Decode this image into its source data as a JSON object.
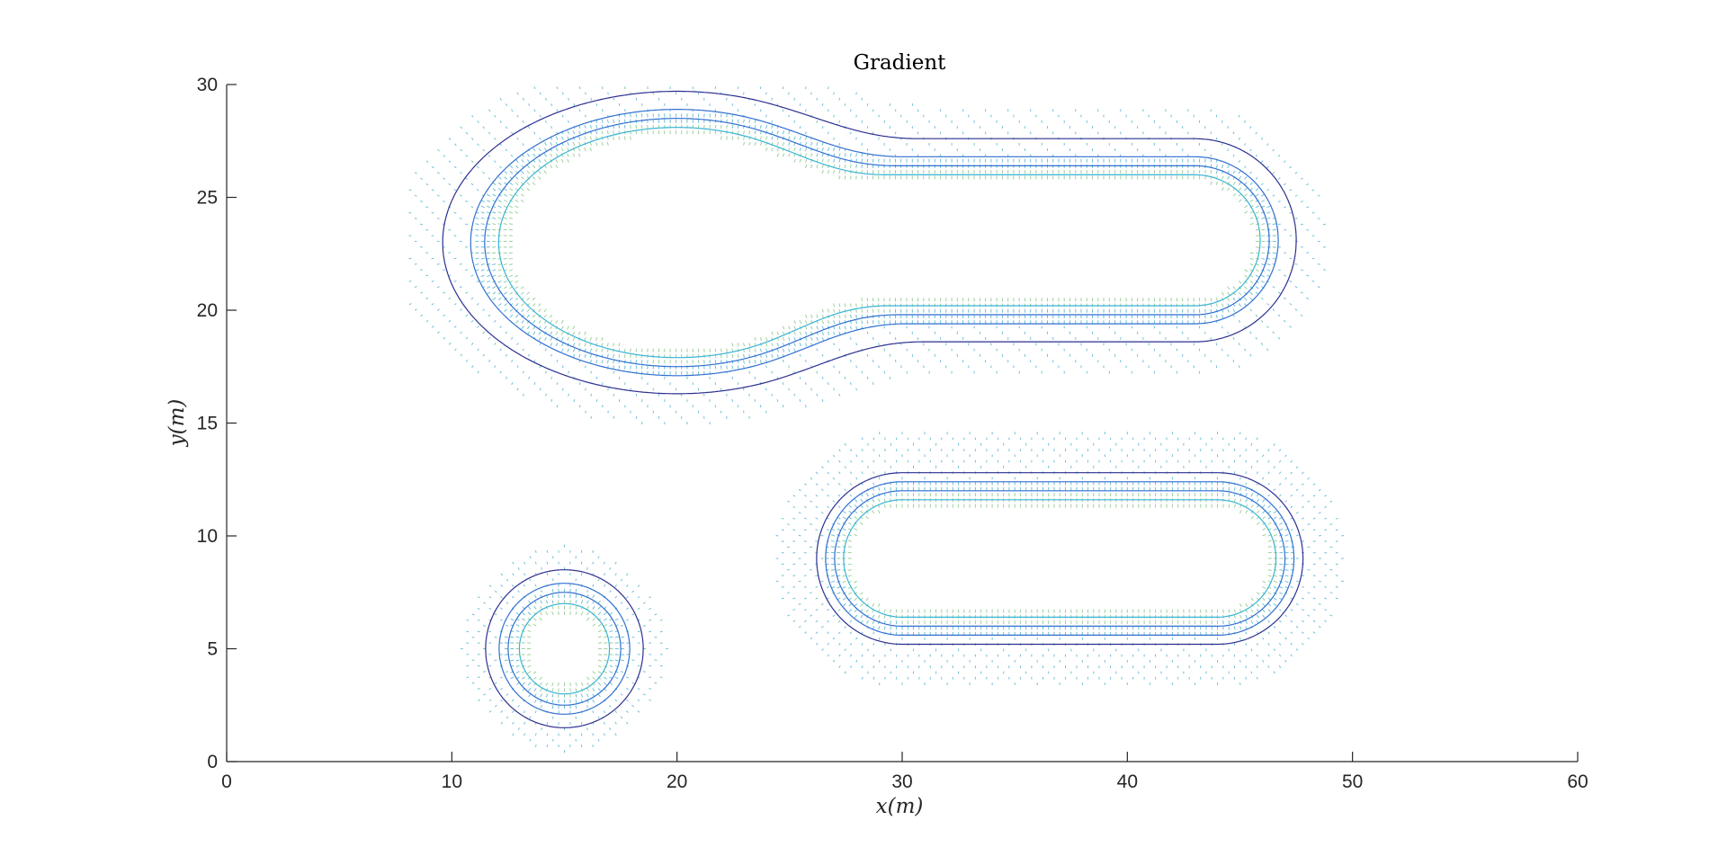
{
  "chart_data": {
    "type": "contour",
    "title": "Gradient",
    "xlabel": "x(m)",
    "ylabel": "y(m)",
    "xlim": [
      0,
      60
    ],
    "ylim": [
      0,
      30
    ],
    "xticks": [
      0,
      10,
      20,
      30,
      40,
      50,
      60
    ],
    "yticks": [
      0,
      5,
      10,
      15,
      20,
      25,
      30
    ],
    "grid": false,
    "colors": {
      "level_outer": "#2b2f8f",
      "level_middle": "#2f6fd0",
      "level_inner": "#38b4d6",
      "gradient_field": "#3fa9c9",
      "gradient_field_dense": "#8cc98a",
      "axis": "#262626"
    },
    "obstacles": [
      {
        "name": "circle",
        "center": [
          15,
          5
        ],
        "radius": 1.5,
        "contour_offsets": [
          0.5,
          1.0,
          1.4,
          2.0
        ],
        "field_extent": 3.0
      },
      {
        "name": "stadium",
        "p1": [
          30,
          9
        ],
        "p2": [
          44,
          9
        ],
        "half_width": 2.2,
        "contour_offsets": [
          0.4,
          0.8,
          1.2,
          1.6
        ],
        "field_extent": 3.4
      },
      {
        "name": "keyhole",
        "bulb_center": [
          20,
          23
        ],
        "bulb_rx": 7.3,
        "bulb_ry": 4.7,
        "bar_x_end": 45.5,
        "bar_y_top": 25.6,
        "bar_y_bottom": 20.6,
        "contour_offsets": [
          0.4,
          0.8,
          1.2,
          2.0
        ],
        "field_extent": 3.4
      }
    ]
  }
}
